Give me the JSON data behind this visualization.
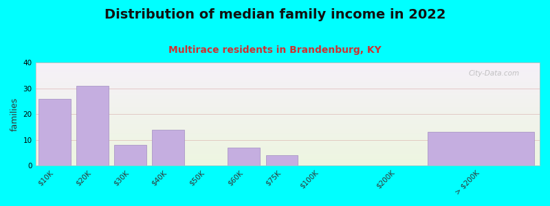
{
  "title": "Distribution of median family income in 2022",
  "subtitle": "Multirace residents in Brandenburg, KY",
  "ylabel": "families",
  "bg_color": "#00FFFF",
  "plot_bg_top": "#edf5e0",
  "plot_bg_bottom": "#f5f0f8",
  "bar_color": "#c5aee0",
  "bar_edge_color": "#a08cc0",
  "categories": [
    "$10K",
    "$20K",
    "$30K",
    "$40K",
    "$50K",
    "$60K",
    "$75K",
    "$100K",
    "$200K",
    "> $200K"
  ],
  "values": [
    26,
    31,
    8,
    14,
    0,
    7,
    4,
    0,
    0,
    13
  ],
  "x_positions": [
    0,
    1,
    2,
    3,
    4,
    5,
    6,
    7,
    9,
    11.25
  ],
  "bar_widths": [
    0.85,
    0.85,
    0.85,
    0.85,
    0.85,
    0.85,
    0.85,
    0.85,
    0.85,
    2.8
  ],
  "xlim": [
    -0.5,
    12.8
  ],
  "ylim": [
    0,
    40
  ],
  "yticks": [
    0,
    10,
    20,
    30,
    40
  ],
  "grid_color": "#cc8888",
  "grid_alpha": 0.4,
  "title_fontsize": 14,
  "subtitle_fontsize": 10,
  "ylabel_fontsize": 9,
  "tick_fontsize": 7.5,
  "watermark": "City-Data.com"
}
